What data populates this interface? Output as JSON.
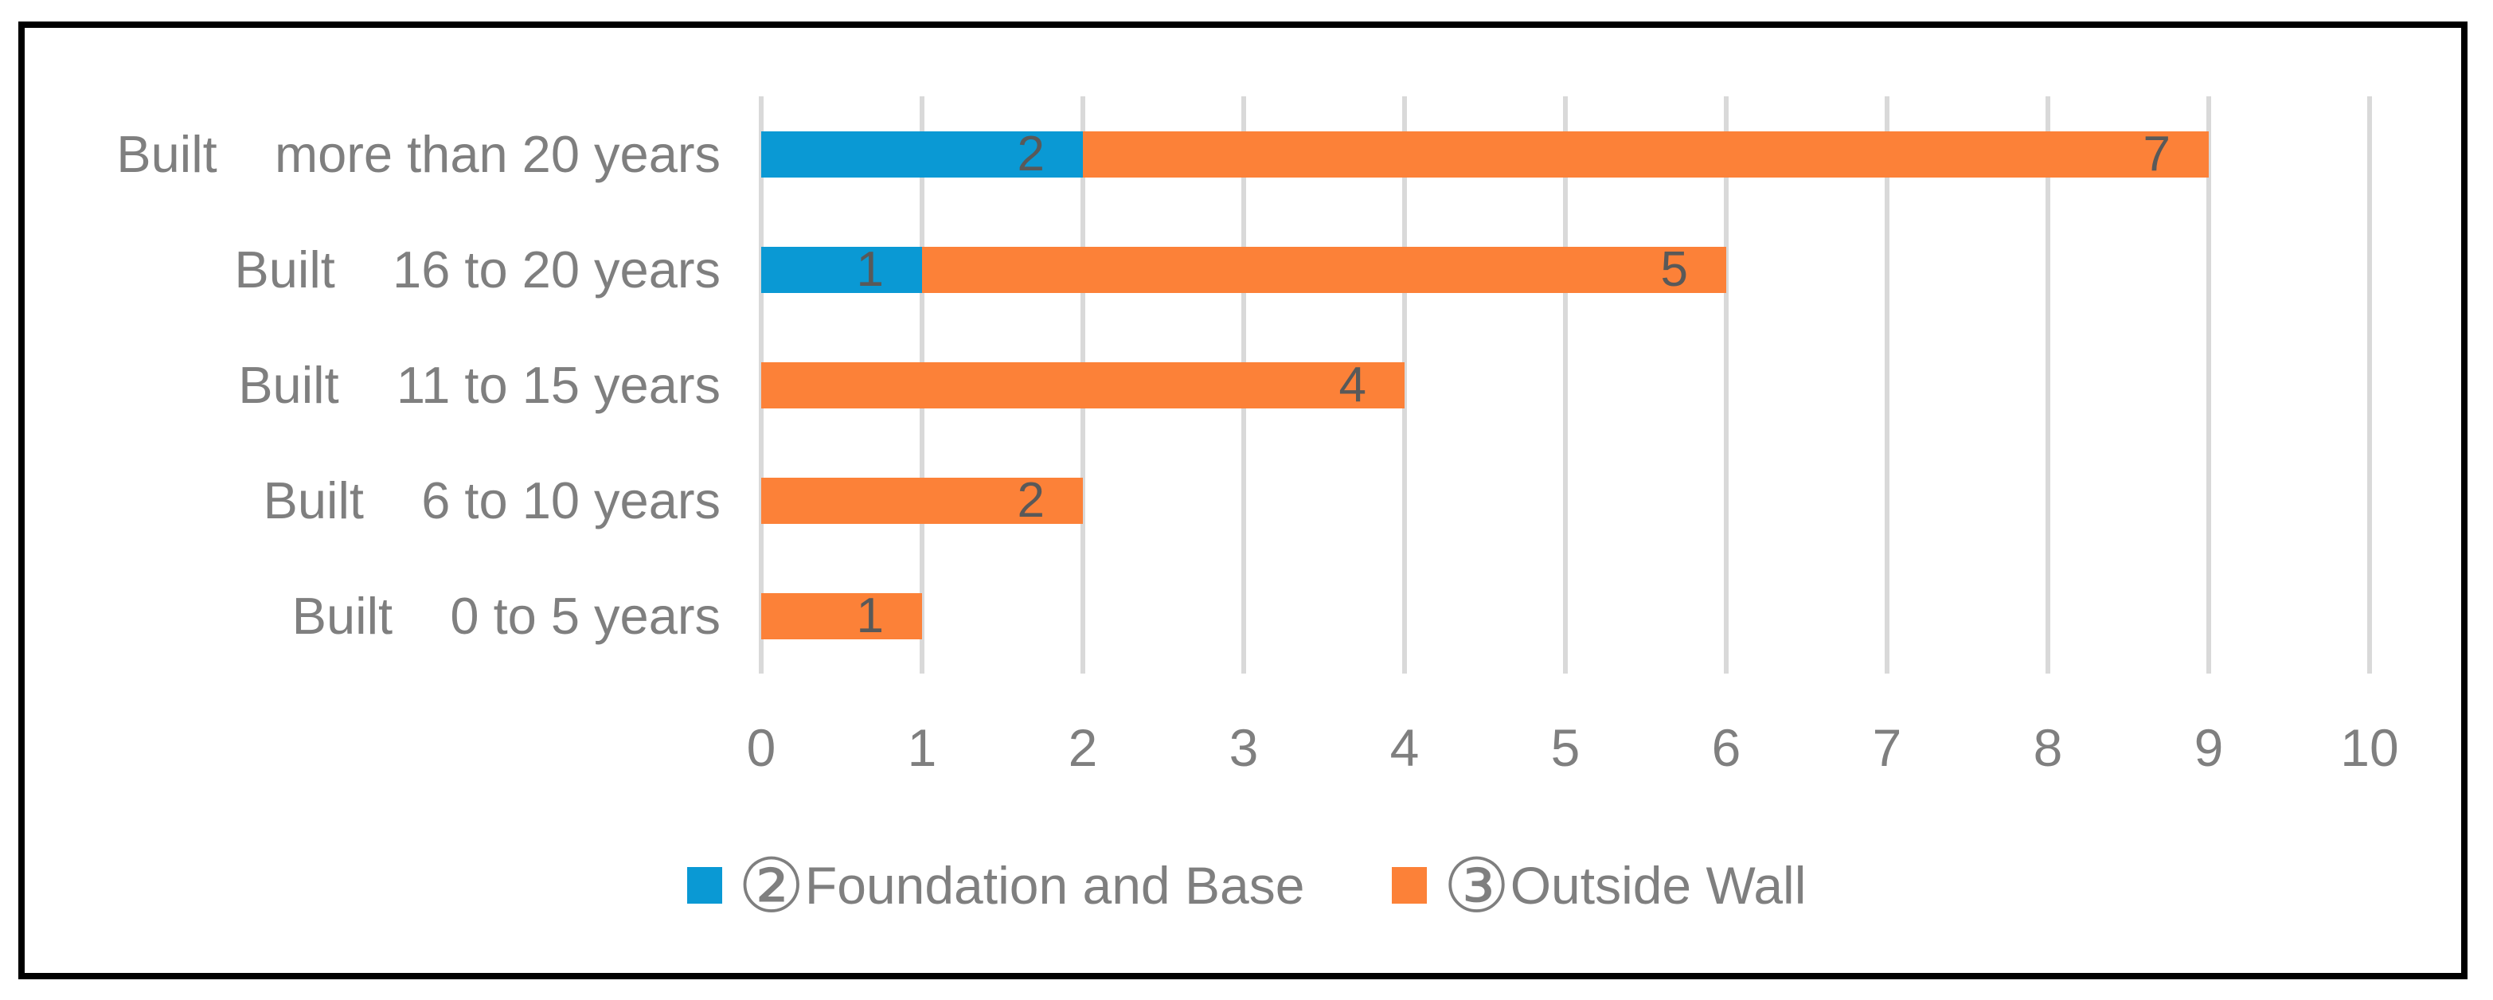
{
  "figure": {
    "background_color": "#FFFFFF",
    "frame_color": "#000000"
  },
  "chart_data": {
    "type": "bar",
    "orientation": "horizontal",
    "stacked": true,
    "title": "",
    "xlabel": "",
    "ylabel": "",
    "categories": [
      "Built    more than 20 years",
      "Built    16 to 20 years",
      "Built    11 to 15 years",
      "Built    6 to 10 years",
      "Built    0 to 5 years"
    ],
    "series": [
      {
        "name": "②Foundation and Base",
        "badge": "②",
        "label": "Foundation and Base",
        "color": "#0A99D4",
        "values": [
          2,
          1,
          0,
          0,
          0
        ]
      },
      {
        "name": "③Outside Wall",
        "badge": "③",
        "label": "Outside Wall",
        "color": "#FC8138",
        "values": [
          7,
          5,
          4,
          2,
          1
        ]
      }
    ],
    "x_axis": {
      "min": 0,
      "max": 10,
      "tick_interval": 1,
      "ticks": [
        "0",
        "1",
        "2",
        "3",
        "4",
        "5",
        "6",
        "7",
        "8",
        "9",
        "10"
      ]
    },
    "gridlines": true,
    "legend_position": "bottom",
    "data_label_position": "inside-end",
    "colors": {
      "gridline": "#D9D9D9",
      "axis_text": "#7F7F7F",
      "data_label": "#595959"
    }
  }
}
